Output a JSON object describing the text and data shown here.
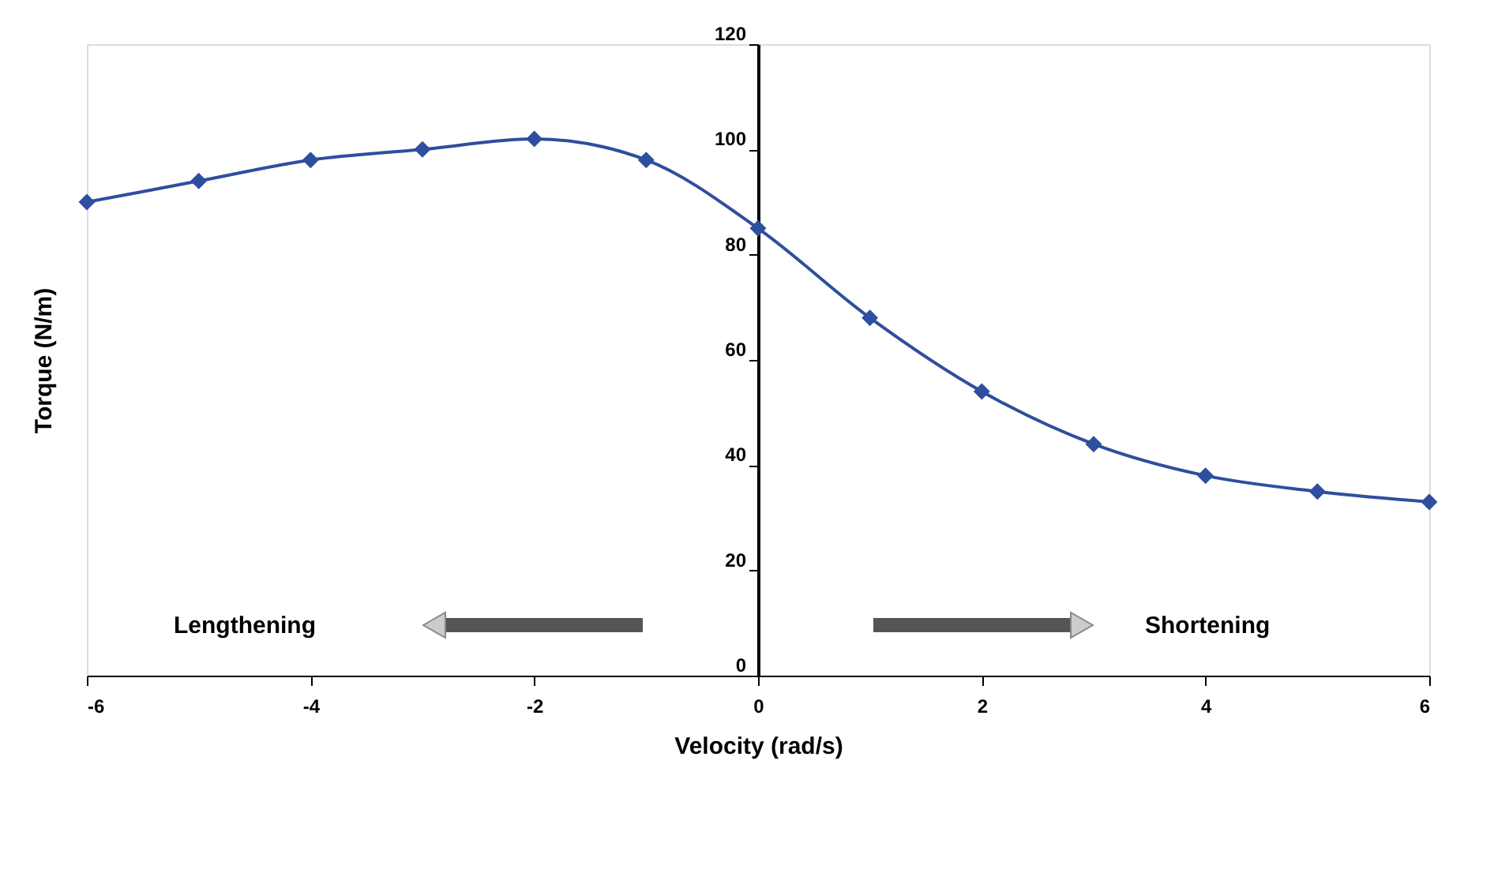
{
  "chart_data": {
    "type": "line",
    "xlabel": "Velocity (rad/s)",
    "ylabel": "Torque (N/m)",
    "x": [
      -6,
      -5,
      -4,
      -3,
      -2,
      -1,
      0,
      1,
      2,
      3,
      4,
      5,
      6
    ],
    "series": [
      {
        "color": "#2e4f9e",
        "values": [
          90,
          94,
          98,
          100,
          102,
          98,
          85,
          68,
          54,
          44,
          38,
          35,
          33
        ]
      }
    ],
    "xlim": [
      -6,
      6
    ],
    "xticks": [
      -6,
      -4,
      -2,
      0,
      2,
      4,
      6
    ],
    "ylim": [
      0,
      120
    ],
    "yticks": [
      0,
      20,
      40,
      60,
      80,
      100,
      120
    ],
    "grid": false,
    "marker": "diamond",
    "line_style": "solid",
    "annotations": [
      "Lengthening",
      "Shortening"
    ]
  }
}
